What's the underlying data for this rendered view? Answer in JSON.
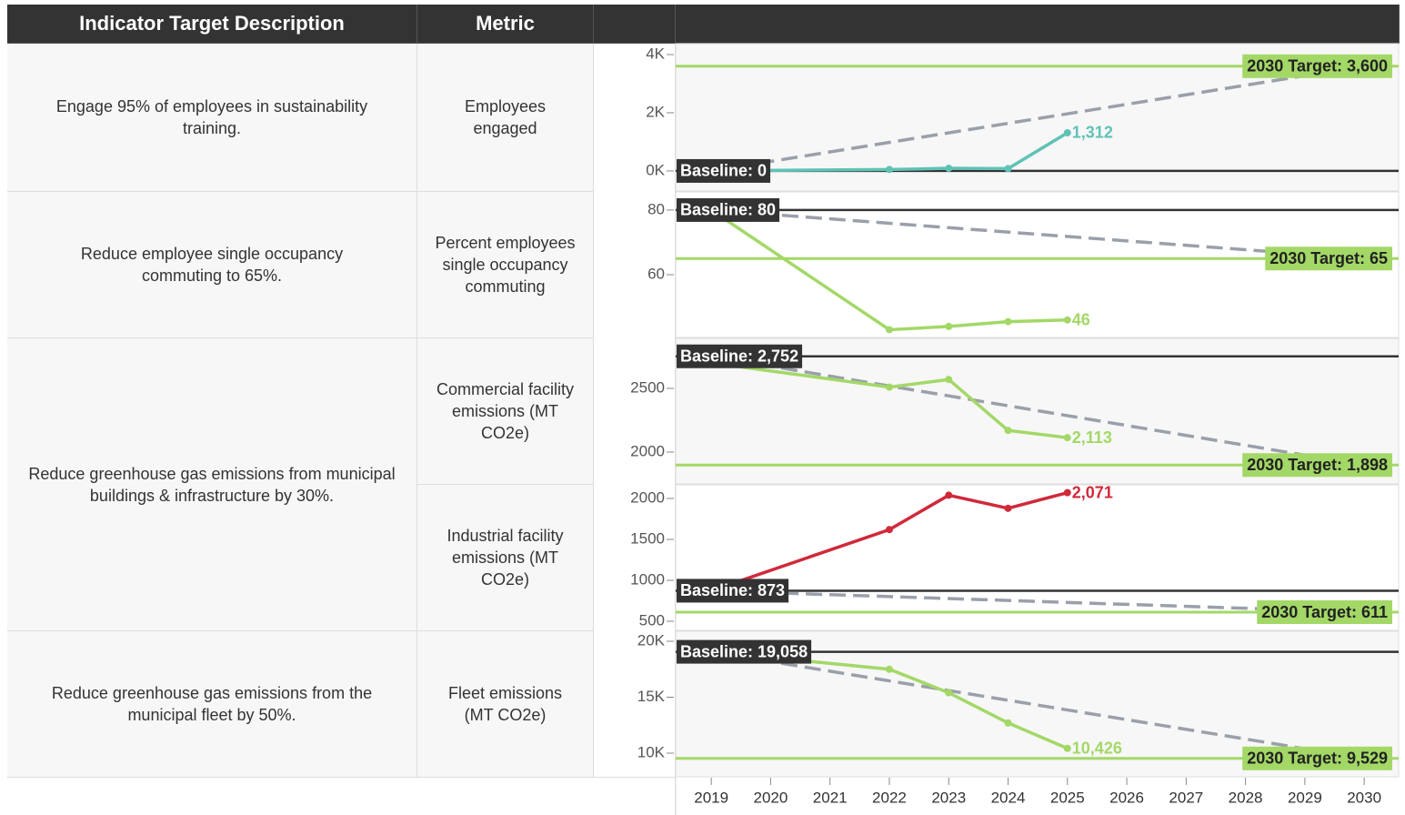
{
  "table": {
    "headers": [
      "Indicator Target Description",
      "Metric"
    ],
    "rows": [
      {
        "description": "Engage 95% of employees in sustainability training.",
        "metrics": [
          "Employees engaged"
        ]
      },
      {
        "description": "Reduce employee single occupancy commuting to 65%.",
        "metrics": [
          "Percent employees single occupancy commuting"
        ]
      },
      {
        "description": "Reduce greenhouse gas emissions from municipal buildings & infrastructure by 30%.",
        "metrics": [
          "Commercial facility emissions (MT CO2e)",
          "Industrial facility emissions (MT CO2e)"
        ]
      },
      {
        "description": "Reduce greenhouse gas emissions from the municipal fleet by 50%.",
        "metrics": [
          "Fleet emissions (MT CO2e)"
        ]
      }
    ]
  },
  "x_axis": {
    "xlim": [
      2018.4,
      2030.58
    ],
    "xticks": [
      2019,
      2020,
      2021,
      2022,
      2023,
      2024,
      2025,
      2026,
      2027,
      2028,
      2029,
      2030
    ]
  },
  "chart_data": [
    {
      "type": "line",
      "x": [
        2019,
        2022,
        2023,
        2024,
        2025
      ],
      "series": [
        {
          "color": "#5fc2b5",
          "values": [
            0,
            50,
            90,
            80,
            1312
          ],
          "value_labels": [
            null,
            null,
            null,
            null,
            "1,312"
          ]
        }
      ],
      "baseline": 0,
      "baseline_label": "Baseline: 0",
      "target": 3600,
      "target_label": "2030 Target: 3,600",
      "ylim": [
        -690,
        4375
      ],
      "yticks": [
        {
          "value": 0,
          "label": "0K"
        },
        {
          "value": 2000,
          "label": "2K"
        },
        {
          "value": 4000,
          "label": "4K"
        }
      ]
    },
    {
      "type": "line",
      "x": [
        2019,
        2022,
        2023,
        2024,
        2025
      ],
      "series": [
        {
          "color": "#a3d867",
          "values": [
            80,
            43,
            44,
            45.5,
            46
          ],
          "value_labels": [
            null,
            null,
            null,
            null,
            "46"
          ]
        }
      ],
      "baseline": 80,
      "baseline_label": "Baseline: 80",
      "target": 65,
      "target_label": "2030 Target: 65",
      "ylim": [
        40.6,
        85.6
      ],
      "yticks": [
        60,
        80
      ]
    },
    {
      "type": "line",
      "x": [
        2019,
        2022,
        2023,
        2024,
        2025
      ],
      "series": [
        {
          "color": "#a3d867",
          "values": [
            2700,
            2510,
            2570,
            2170,
            2113
          ],
          "value_labels": [
            null,
            null,
            null,
            null,
            "2,113"
          ]
        }
      ],
      "baseline": 2752,
      "baseline_label": "Baseline: 2,752",
      "target": 1898,
      "target_label": "2030 Target: 1,898",
      "ylim": [
        1750,
        2893
      ],
      "yticks": [
        2000,
        2500
      ]
    },
    {
      "type": "line",
      "x": [
        2019,
        2022,
        2023,
        2024,
        2025
      ],
      "series": [
        {
          "color": "#d0293a",
          "values": [
            873,
            1620,
            2040,
            1880,
            2071
          ],
          "value_labels": [
            null,
            null,
            null,
            null,
            "2,071"
          ]
        }
      ],
      "baseline": 873,
      "baseline_label": "Baseline: 873",
      "target": 611,
      "target_label": "2030 Target: 611",
      "ylim": [
        389,
        2167
      ],
      "yticks": [
        500,
        1000,
        1500,
        2000
      ]
    },
    {
      "type": "line",
      "x": [
        2019,
        2022,
        2023,
        2024,
        2025
      ],
      "series": [
        {
          "color": "#a3d867",
          "values": [
            19058,
            17500,
            15400,
            12700,
            10426
          ],
          "value_labels": [
            null,
            null,
            null,
            null,
            "10,426"
          ]
        }
      ],
      "baseline": 19058,
      "baseline_label": "Baseline: 19,058",
      "target": 9529,
      "target_label": "2030 Target: 9,529",
      "ylim": [
        7886,
        20894
      ],
      "yticks": [
        {
          "value": 10000,
          "label": "10K"
        },
        {
          "value": 15000,
          "label": "15K"
        },
        {
          "value": 20000,
          "label": "20K"
        }
      ]
    }
  ]
}
